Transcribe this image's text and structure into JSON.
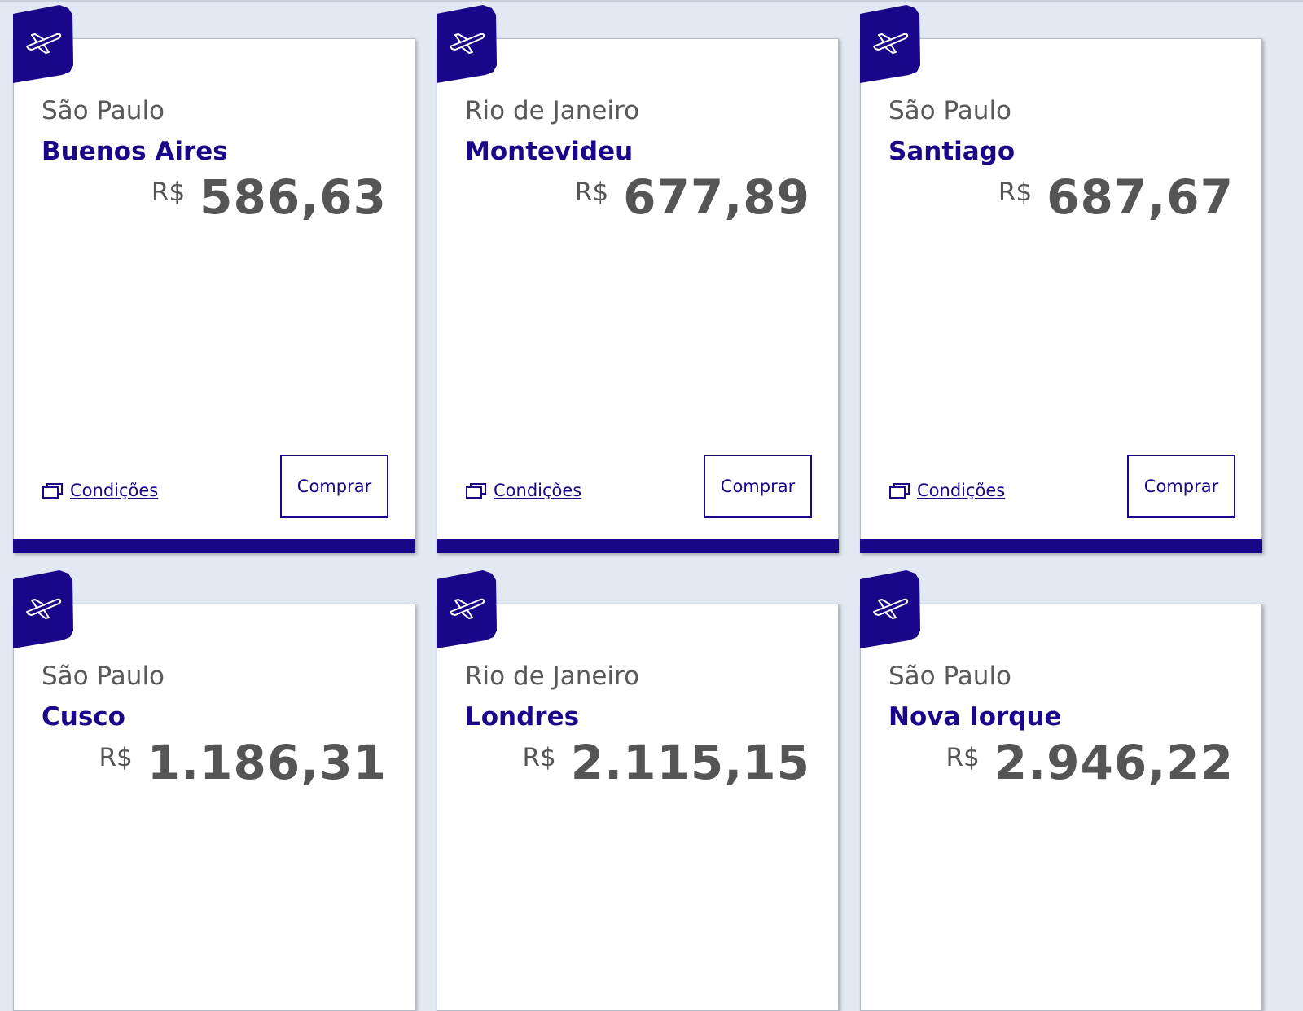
{
  "accent_color": "#1a0688",
  "cards": [
    {
      "origin": "São Paulo",
      "destination": "Buenos Aires",
      "currency": "R$",
      "price": "586,63",
      "conditions_label": "Condições",
      "buy_label": "Comprar",
      "icon": "airplane-icon"
    },
    {
      "origin": "Rio de Janeiro",
      "destination": "Montevideu",
      "currency": "R$",
      "price": "677,89",
      "conditions_label": "Condições",
      "buy_label": "Comprar",
      "icon": "airplane-icon"
    },
    {
      "origin": "São Paulo",
      "destination": "Santiago",
      "currency": "R$",
      "price": "687,67",
      "conditions_label": "Condições",
      "buy_label": "Comprar",
      "icon": "airplane-icon"
    },
    {
      "origin": "São Paulo",
      "destination": "Cusco",
      "currency": "R$",
      "price": "1.186,31",
      "icon": "airplane-icon"
    },
    {
      "origin": "Rio de Janeiro",
      "destination": "Londres",
      "currency": "R$",
      "price": "2.115,15",
      "icon": "airplane-icon"
    },
    {
      "origin": "São Paulo",
      "destination": "Nova Iorque",
      "currency": "R$",
      "price": "2.946,22",
      "icon": "airplane-icon"
    }
  ]
}
